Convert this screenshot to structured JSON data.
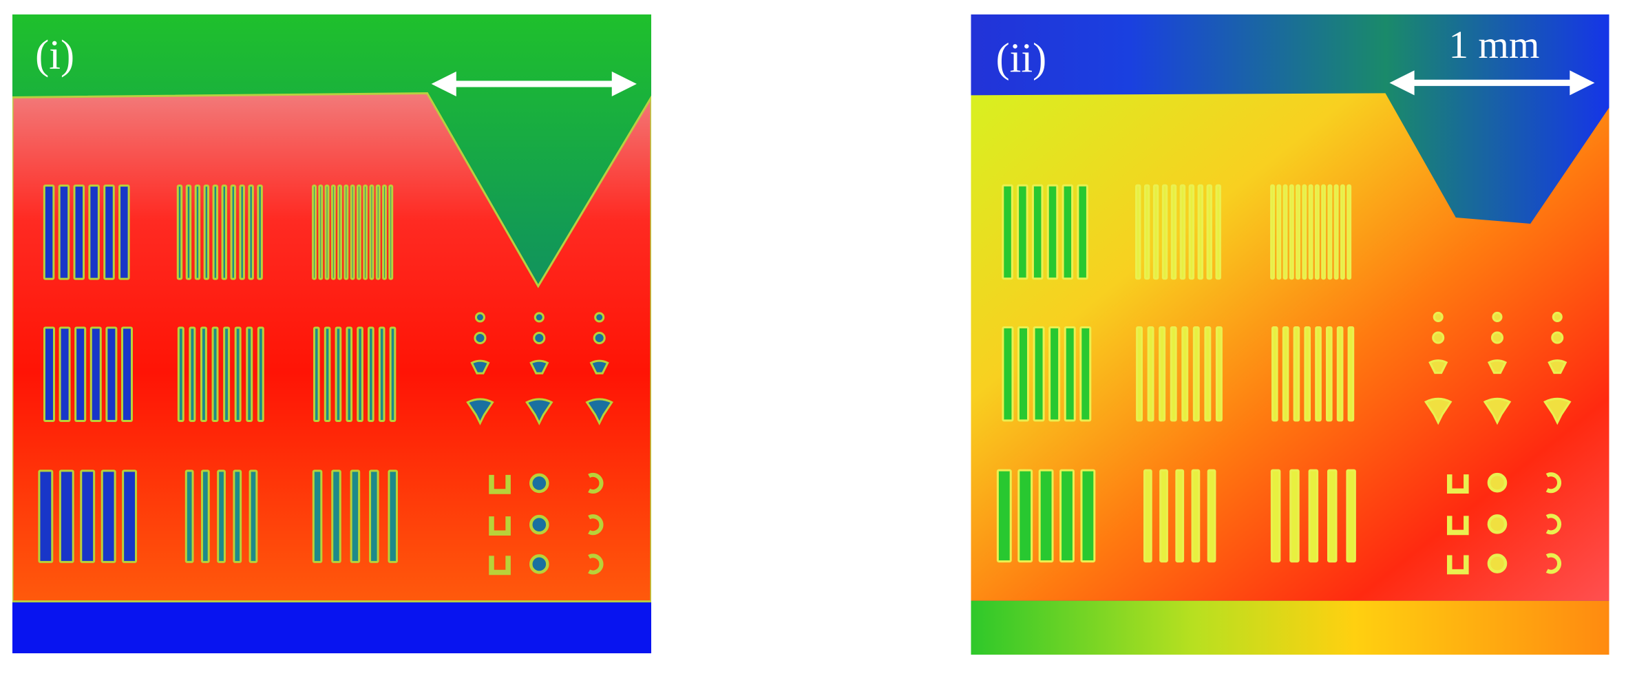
{
  "panels": [
    {
      "label": "(i)"
    },
    {
      "label": "(ii)",
      "scale_bar": "1 mm"
    }
  ]
}
